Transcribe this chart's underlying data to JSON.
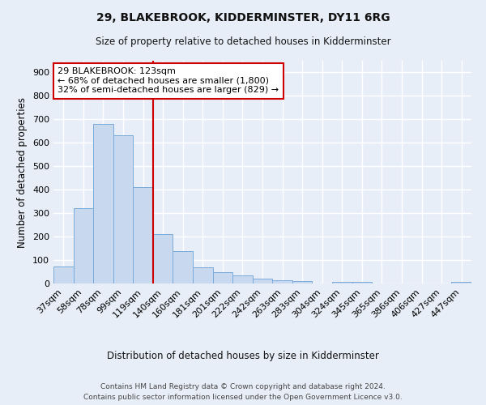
{
  "title1": "29, BLAKEBROOK, KIDDERMINSTER, DY11 6RG",
  "title2": "Size of property relative to detached houses in Kidderminster",
  "xlabel": "Distribution of detached houses by size in Kidderminster",
  "ylabel": "Number of detached properties",
  "categories": [
    "37sqm",
    "58sqm",
    "78sqm",
    "99sqm",
    "119sqm",
    "140sqm",
    "160sqm",
    "181sqm",
    "201sqm",
    "222sqm",
    "242sqm",
    "263sqm",
    "283sqm",
    "304sqm",
    "324sqm",
    "345sqm",
    "365sqm",
    "386sqm",
    "406sqm",
    "427sqm",
    "447sqm"
  ],
  "values": [
    72,
    320,
    680,
    632,
    410,
    210,
    138,
    70,
    48,
    35,
    20,
    13,
    10,
    0,
    8,
    8,
    0,
    0,
    0,
    0,
    8
  ],
  "bar_color": "#c8d8ef",
  "bar_edge_color": "#7aabda",
  "vline_color": "#cc0000",
  "annotation_text": "29 BLAKEBROOK: 123sqm\n← 68% of detached houses are smaller (1,800)\n32% of semi-detached houses are larger (829) →",
  "annotation_box_color": "#ffffff",
  "annotation_box_edge_color": "#cc0000",
  "footer_text1": "Contains HM Land Registry data © Crown copyright and database right 2024.",
  "footer_text2": "Contains public sector information licensed under the Open Government Licence v3.0.",
  "ylim": [
    0,
    950
  ],
  "background_color": "#e8eef8",
  "plot_bg_color": "#e8eef8"
}
